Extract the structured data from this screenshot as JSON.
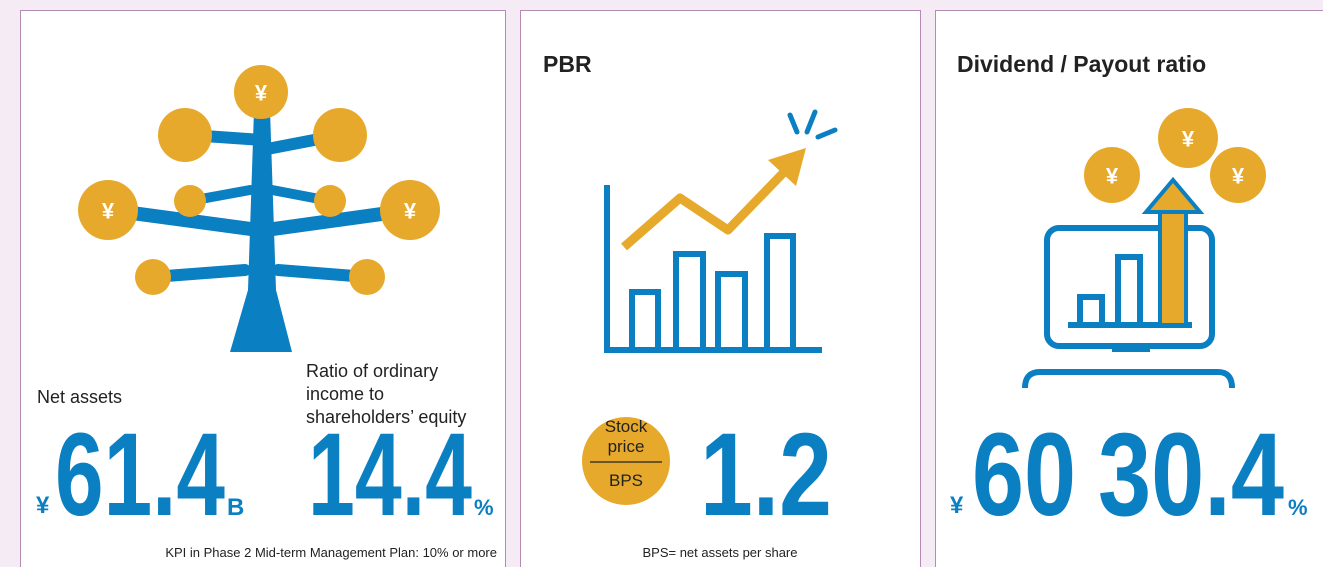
{
  "cards": [
    {
      "icon_symbol": "¥",
      "metrics": [
        {
          "label_lines": [
            "Net assets"
          ],
          "prefix": "¥",
          "value": "61.4",
          "suffix": "B"
        },
        {
          "label_lines": [
            "Ratio of ordinary",
            "income to",
            "shareholders’ equity"
          ],
          "value": "14.4",
          "suffix": "%"
        }
      ],
      "note": "KPI in Phase 2 Mid-term Management Plan: 10% or more"
    },
    {
      "title": "PBR",
      "formula": {
        "numerator_lines": [
          "Stock",
          "price"
        ],
        "denominator": "BPS"
      },
      "value": "1.2",
      "note": "BPS= net assets per share"
    },
    {
      "title": "Dividend / Payout ratio",
      "icon_symbol": "¥",
      "metrics": [
        {
          "prefix": "¥",
          "value": "60"
        },
        {
          "value": "30.4",
          "suffix": "%"
        }
      ]
    }
  ]
}
